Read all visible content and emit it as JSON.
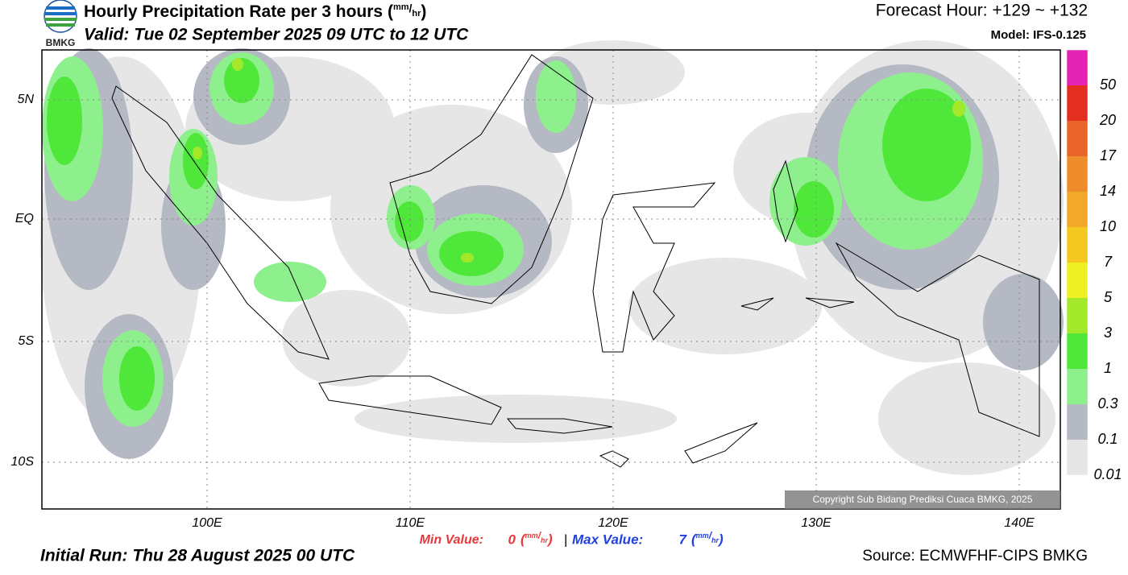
{
  "header": {
    "logo_text": "BMKG",
    "title": "Hourly Precipitation Rate per 3 hours",
    "title_unit": [
      "(",
      "mm",
      "/",
      "hr",
      ")"
    ],
    "valid": "Valid: Tue 02 September 2025 09 UTC to 12 UTC",
    "forecast_hour": "Forecast Hour: +129 ~ +132",
    "model": "Model: IFS-0.125"
  },
  "map": {
    "lat_labels": [
      "5N",
      "EQ",
      "5S",
      "10S"
    ],
    "lon_labels": [
      "100E",
      "110E",
      "120E",
      "130E",
      "140E"
    ],
    "copyright": "Copyright Sub Bidang Prediksi Cuaca BMKG, 2025"
  },
  "colorbar": {
    "labels": [
      "0.01",
      "0.1",
      "0.3",
      "1",
      "3",
      "5",
      "7",
      "10",
      "14",
      "17",
      "20",
      "50"
    ],
    "colors": [
      "#e6e6e6",
      "#b4b9c3",
      "#8ef08c",
      "#4fe83a",
      "#a4e82a",
      "#eef023",
      "#f4c81e",
      "#f2a828",
      "#ee8c2c",
      "#e8642a",
      "#e42f20",
      "#e424b4"
    ]
  },
  "footer": {
    "min_label": "Min Value:",
    "min_value": "0",
    "max_label": "Max Value:",
    "max_value": "7",
    "unit": [
      "(",
      "mm",
      "/",
      "hr",
      ")"
    ],
    "separator": "|",
    "initial_run": "Initial Run: Thu 28 August 2025 00 UTC",
    "source": "Source: ECMWFHF-CIPS BMKG"
  }
}
